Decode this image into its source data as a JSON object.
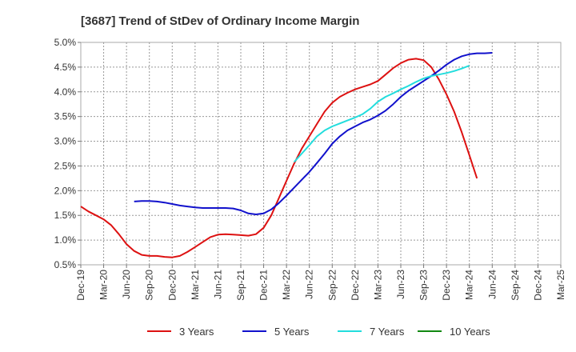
{
  "chart_data": {
    "type": "line",
    "title": "[3687]  Trend of StDev of Ordinary Income Margin",
    "xlabel": "",
    "ylabel": "",
    "x_ticks": [
      "Dec-19",
      "Mar-20",
      "Jun-20",
      "Sep-20",
      "Dec-20",
      "Mar-21",
      "Jun-21",
      "Sep-21",
      "Dec-21",
      "Mar-22",
      "Jun-22",
      "Sep-22",
      "Dec-22",
      "Mar-23",
      "Jun-23",
      "Sep-23",
      "Dec-23",
      "Mar-24",
      "Jun-24",
      "Sep-24",
      "Dec-24",
      "Mar-25"
    ],
    "y_ticks": [
      "0.5%",
      "1.0%",
      "1.5%",
      "2.0%",
      "2.5%",
      "3.0%",
      "3.5%",
      "4.0%",
      "4.5%",
      "5.0%"
    ],
    "ylim": [
      0.5,
      5.0
    ],
    "grid": true,
    "legend_position": "bottom",
    "series": [
      {
        "name": "3 Years",
        "color": "#dd1111",
        "start_index": 0,
        "values": [
          1.68,
          1.58,
          1.5,
          1.42,
          1.3,
          1.12,
          0.92,
          0.78,
          0.7,
          0.68,
          0.68,
          0.66,
          0.65,
          0.68,
          0.76,
          0.86,
          0.96,
          1.06,
          1.11,
          1.12,
          1.11,
          1.1,
          1.09,
          1.12,
          1.25,
          1.5,
          1.85,
          2.2,
          2.55,
          2.85,
          3.1,
          3.35,
          3.6,
          3.78,
          3.9,
          3.98,
          4.05,
          4.1,
          4.15,
          4.22,
          4.35,
          4.48,
          4.58,
          4.65,
          4.67,
          4.64,
          4.5,
          4.25,
          3.95,
          3.6,
          3.18,
          2.72,
          2.25
        ]
      },
      {
        "name": "5 Years",
        "color": "#1111cc",
        "start_index": 7,
        "values": [
          1.78,
          1.79,
          1.79,
          1.78,
          1.76,
          1.73,
          1.7,
          1.68,
          1.66,
          1.65,
          1.65,
          1.65,
          1.65,
          1.64,
          1.6,
          1.54,
          1.52,
          1.54,
          1.62,
          1.75,
          1.9,
          2.06,
          2.22,
          2.38,
          2.56,
          2.75,
          2.95,
          3.1,
          3.22,
          3.3,
          3.38,
          3.44,
          3.52,
          3.62,
          3.75,
          3.9,
          4.02,
          4.12,
          4.22,
          4.32,
          4.43,
          4.55,
          4.65,
          4.72,
          4.76,
          4.78,
          4.78,
          4.79
        ]
      },
      {
        "name": "7 Years",
        "color": "#22dddd",
        "start_index": 28,
        "values": [
          2.58,
          2.75,
          2.92,
          3.1,
          3.22,
          3.3,
          3.36,
          3.42,
          3.48,
          3.55,
          3.66,
          3.8,
          3.9,
          3.97,
          4.05,
          4.12,
          4.2,
          4.27,
          4.32,
          4.35,
          4.38,
          4.42,
          4.47,
          4.53
        ]
      },
      {
        "name": "10 Years",
        "color": "#118811",
        "start_index": 0,
        "values": []
      }
    ]
  }
}
